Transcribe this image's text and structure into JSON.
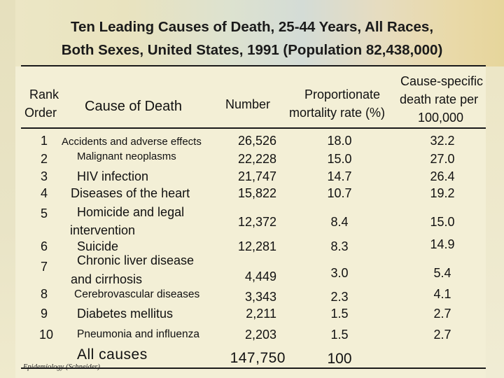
{
  "title": {
    "line1": "Ten Leading Causes of Death, 25-44 Years, All Races,",
    "line2": "Both Sexes, United States, 1991 (Population 82,438,000)"
  },
  "headers": {
    "rank_line1": "Rank",
    "rank_line2": "Order",
    "cause": "Cause of Death",
    "number": "Number",
    "prop_line1": "Proportionate",
    "prop_line2": "mortality rate (%)",
    "rate_line1": "Cause-specific",
    "rate_line2": "death rate per",
    "rate_line3": "100,000"
  },
  "rows": [
    {
      "rank": "1",
      "cause": [
        "Accidents and adverse effects"
      ],
      "number": "26,526",
      "prop": "18.0",
      "rate": "32.2"
    },
    {
      "rank": "2",
      "cause": [
        "Malignant neoplasms"
      ],
      "number": "22,228",
      "prop": "15.0",
      "rate": "27.0"
    },
    {
      "rank": "3",
      "cause": [
        "HIV infection"
      ],
      "number": "21,747",
      "prop": "14.7",
      "rate": "26.4"
    },
    {
      "rank": "4",
      "cause": [
        "Diseases of the heart"
      ],
      "number": "15,822",
      "prop": "10.7",
      "rate": "19.2"
    },
    {
      "rank": "5",
      "cause": [
        "Homicide and legal",
        "intervention"
      ],
      "number": "12,372",
      "prop": "8.4",
      "rate": "15.0"
    },
    {
      "rank": "6",
      "cause": [
        "Suicide"
      ],
      "number": "12,281",
      "prop": "8.3",
      "rate": "14.9"
    },
    {
      "rank": "7",
      "cause": [
        "Chronic liver disease",
        "and cirrhosis"
      ],
      "number": "4,449",
      "prop": "3.0",
      "rate": "5.4"
    },
    {
      "rank": "8",
      "cause": [
        "Cerebrovascular diseases"
      ],
      "number": "3,343",
      "prop": "2.3",
      "rate": "4.1"
    },
    {
      "rank": "9",
      "cause": [
        "Diabetes mellitus"
      ],
      "number": "2,211",
      "prop": "1.5",
      "rate": "2.7"
    },
    {
      "rank": "10",
      "cause": [
        "Pneumonia and influenza"
      ],
      "number": "2,203",
      "prop": "1.5",
      "rate": "2.7"
    }
  ],
  "total": {
    "label": "All causes",
    "number": "147,750",
    "prop": "100"
  },
  "credit": "Epidemiology (Schneider)"
}
